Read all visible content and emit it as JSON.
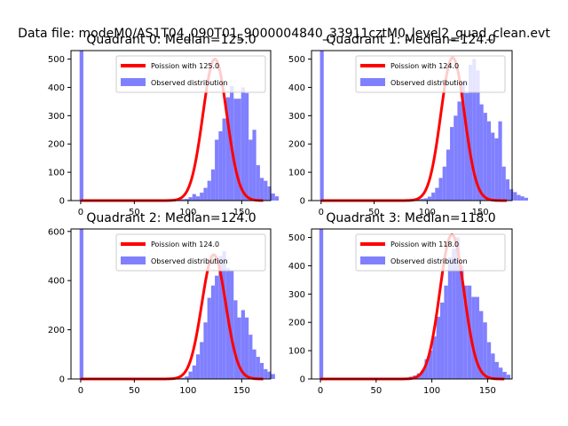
{
  "suptitle": "Data file: modeM0/AS1T04_090T01_9000004840_33911cztM0_level2_quad_clean.evt",
  "colors": {
    "poisson": "#ff0000",
    "observed": "#8080ff",
    "axis": "#000000",
    "background": "#ffffff"
  },
  "chart_data": [
    {
      "type": "bar",
      "title": "Quadrant 0: Median=125.0",
      "median": 125.0,
      "xlim": [
        -9,
        177
      ],
      "ylim": [
        0,
        530
      ],
      "xticks": [
        0,
        50,
        100,
        150
      ],
      "yticks": [
        0,
        100,
        200,
        300,
        400,
        500
      ],
      "legend": {
        "position": "upper right",
        "poisson_label": "Poission with 125.0",
        "observed_label": "Observed distribution"
      },
      "observed": {
        "bin_start": -1,
        "bin_width": 3.5,
        "counts": [
          530,
          2,
          2,
          2,
          2,
          2,
          2,
          2,
          2,
          2,
          2,
          2,
          2,
          2,
          2,
          2,
          2,
          2,
          2,
          4,
          2,
          2,
          3,
          2,
          2,
          3,
          3,
          5,
          6,
          12,
          23,
          15,
          28,
          45,
          70,
          110,
          215,
          245,
          290,
          365,
          405,
          360,
          360,
          400,
          380,
          215,
          250,
          125,
          80,
          70,
          50,
          25,
          15
        ]
      },
      "poisson": {
        "mean": 125.0,
        "peak": 500,
        "x_range": [
          0,
          170
        ]
      }
    },
    {
      "type": "bar",
      "title": "Quadrant 1: Median=124.0",
      "median": 124.0,
      "xlim": [
        -9,
        180
      ],
      "ylim": [
        0,
        530
      ],
      "xticks": [
        0,
        50,
        100,
        150
      ],
      "yticks": [
        0,
        100,
        200,
        300,
        400,
        500
      ],
      "legend": {
        "position": "upper right",
        "poisson_label": "Poission with 124.0",
        "observed_label": "Observed distribution"
      },
      "observed": {
        "bin_start": -1,
        "bin_width": 3.5,
        "counts": [
          530,
          2,
          2,
          2,
          2,
          2,
          2,
          2,
          2,
          2,
          2,
          2,
          2,
          2,
          2,
          2,
          2,
          2,
          2,
          2,
          2,
          3,
          2,
          3,
          3,
          4,
          4,
          6,
          8,
          14,
          28,
          45,
          80,
          120,
          180,
          260,
          300,
          350,
          420,
          380,
          480,
          500,
          460,
          340,
          310,
          280,
          240,
          220,
          280,
          120,
          75,
          40,
          30,
          20,
          15,
          10
        ]
      },
      "poisson": {
        "mean": 124.0,
        "peak": 505,
        "x_range": [
          0,
          175
        ]
      }
    },
    {
      "type": "bar",
      "title": "Quadrant 2: Median=124.0",
      "median": 124.0,
      "xlim": [
        -9,
        177
      ],
      "ylim": [
        0,
        610
      ],
      "xticks": [
        0,
        50,
        100,
        150
      ],
      "yticks": [
        0,
        200,
        400,
        600
      ],
      "legend": {
        "position": "upper right",
        "poisson_label": "Poission with 124.0",
        "observed_label": "Observed distribution"
      },
      "observed": {
        "bin_start": -1,
        "bin_width": 3.5,
        "counts": [
          610,
          2,
          2,
          2,
          2,
          2,
          2,
          2,
          2,
          2,
          2,
          2,
          2,
          2,
          2,
          2,
          2,
          2,
          2,
          2,
          2,
          2,
          2,
          2,
          2,
          2,
          3,
          5,
          10,
          30,
          55,
          100,
          150,
          230,
          330,
          380,
          420,
          500,
          520,
          450,
          440,
          320,
          250,
          280,
          250,
          180,
          120,
          90,
          65,
          40,
          30,
          20
        ]
      },
      "poisson": {
        "mean": 124.0,
        "peak": 505,
        "x_range": [
          0,
          170
        ]
      }
    },
    {
      "type": "bar",
      "title": "Quadrant 3: Median=118.0",
      "median": 118.0,
      "xlim": [
        -8,
        172
      ],
      "ylim": [
        0,
        530
      ],
      "xticks": [
        0,
        50,
        100,
        150
      ],
      "yticks": [
        0,
        100,
        200,
        300,
        400,
        500
      ],
      "legend": {
        "position": "upper right",
        "poisson_label": "Poission with 118.0",
        "observed_label": "Observed distribution"
      },
      "observed": {
        "bin_start": -1,
        "bin_width": 3.5,
        "counts": [
          530,
          2,
          2,
          2,
          2,
          2,
          2,
          2,
          2,
          2,
          2,
          2,
          2,
          2,
          2,
          2,
          2,
          2,
          2,
          2,
          3,
          3,
          4,
          8,
          12,
          20,
          30,
          70,
          100,
          150,
          220,
          270,
          330,
          430,
          460,
          500,
          400,
          330,
          330,
          290,
          290,
          240,
          200,
          130,
          90,
          60,
          40,
          25,
          15
        ]
      },
      "poisson": {
        "mean": 118.0,
        "peak": 510,
        "x_range": [
          0,
          165
        ]
      }
    }
  ]
}
